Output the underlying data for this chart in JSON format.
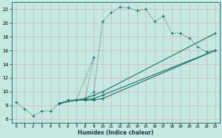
{
  "xlabel": "Humidex (Indice chaleur)",
  "bg_color": "#c5e8e3",
  "line_color": "#1a7065",
  "grid_color": "#d4b8b8",
  "xlim": [
    -0.5,
    23.5
  ],
  "ylim": [
    5.5,
    23.0
  ],
  "yticks": [
    6,
    8,
    10,
    12,
    14,
    16,
    18,
    20,
    22
  ],
  "xticks": [
    0,
    1,
    2,
    3,
    4,
    5,
    6,
    7,
    8,
    9,
    10,
    11,
    12,
    13,
    14,
    15,
    16,
    17,
    18,
    19,
    20,
    21,
    22,
    23
  ],
  "curve_main": {
    "x": [
      0,
      1,
      2,
      3,
      4,
      5,
      6,
      7,
      8,
      9,
      10,
      11,
      12,
      13,
      14,
      15,
      16,
      17,
      18,
      19,
      20,
      21,
      22,
      23
    ],
    "y": [
      8.5,
      7.5,
      6.5,
      7.2,
      7.2,
      8.3,
      8.8,
      8.8,
      9.0,
      10.0,
      20.2,
      21.5,
      22.3,
      22.2,
      21.8,
      22.0,
      20.2,
      21.0,
      18.5,
      18.5,
      17.8,
      16.5,
      15.8,
      16.0
    ]
  },
  "curve_spike": {
    "x": [
      7,
      9,
      8
    ],
    "y": [
      8.8,
      15.0,
      9.0
    ]
  },
  "diag1": {
    "x": [
      5,
      7,
      8,
      9,
      10,
      23
    ],
    "y": [
      8.3,
      8.8,
      9.0,
      9.5,
      10.0,
      18.5
    ]
  },
  "diag2": {
    "x": [
      5,
      7,
      8,
      9,
      10,
      23
    ],
    "y": [
      8.3,
      8.8,
      8.8,
      9.0,
      9.5,
      16.0
    ]
  },
  "diag3": {
    "x": [
      5,
      7,
      8,
      9,
      10,
      23
    ],
    "y": [
      8.3,
      8.8,
      8.8,
      8.8,
      9.0,
      16.0
    ]
  }
}
